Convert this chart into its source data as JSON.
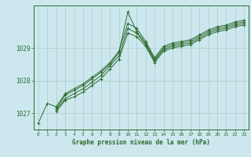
{
  "title": "Graphe pression niveau de la mer (hPa)",
  "bg_color": "#cce8ee",
  "grid_color": "#aacccc",
  "line_color": "#2d6a2d",
  "xlim": [
    -0.5,
    23.5
  ],
  "ylim": [
    1026.5,
    1030.3
  ],
  "yticks": [
    1027,
    1028,
    1029
  ],
  "xticks": [
    0,
    1,
    2,
    3,
    4,
    5,
    6,
    7,
    8,
    9,
    10,
    11,
    12,
    13,
    14,
    15,
    16,
    17,
    18,
    19,
    20,
    21,
    22,
    23
  ],
  "series": [
    [
      1026.7,
      1027.3,
      1027.2,
      1027.6,
      1027.75,
      1027.9,
      1028.1,
      1028.3,
      1028.55,
      1028.9,
      1029.75,
      1029.6,
      1029.2,
      1028.7,
      1029.05,
      1029.15,
      1029.2,
      1029.25,
      1029.4,
      1029.55,
      1029.65,
      1029.7,
      1029.8,
      1029.85
    ],
    [
      null,
      null,
      1027.15,
      1027.55,
      1027.7,
      1027.85,
      1028.05,
      1028.25,
      1028.5,
      1028.85,
      1030.1,
      1029.5,
      1029.15,
      1028.65,
      1029.0,
      1029.1,
      1029.15,
      1029.2,
      1029.35,
      1029.5,
      1029.6,
      1029.65,
      1029.75,
      1029.8
    ],
    [
      null,
      null,
      1027.1,
      1027.45,
      1027.6,
      1027.75,
      1027.95,
      1028.15,
      1028.45,
      1028.75,
      1029.6,
      1029.45,
      1029.1,
      1028.6,
      1028.95,
      1029.05,
      1029.1,
      1029.15,
      1029.3,
      1029.45,
      1029.55,
      1029.6,
      1029.7,
      1029.75
    ],
    [
      null,
      null,
      1027.05,
      1027.4,
      1027.5,
      1027.65,
      1027.85,
      1028.05,
      1028.35,
      1028.65,
      1029.45,
      1029.35,
      1029.05,
      1028.55,
      1028.9,
      1029.0,
      1029.05,
      1029.1,
      1029.25,
      1029.4,
      1029.5,
      1029.55,
      1029.65,
      1029.7
    ]
  ]
}
